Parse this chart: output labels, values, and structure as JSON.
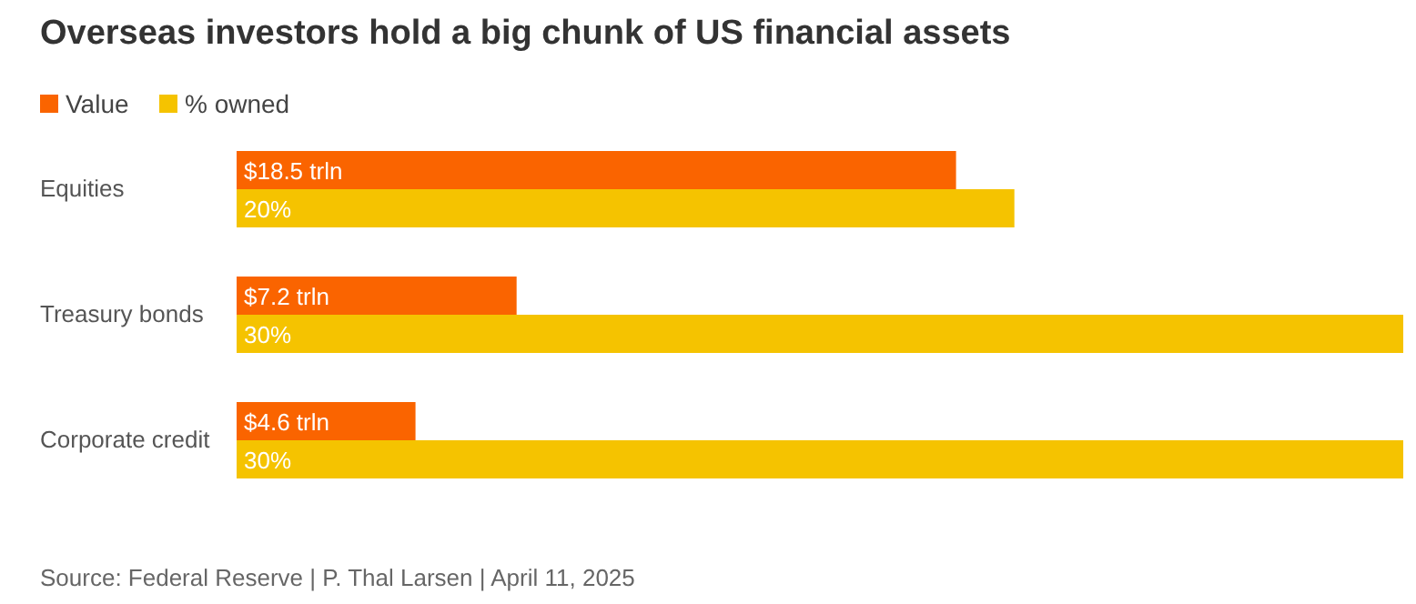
{
  "chart_data": {
    "type": "bar",
    "orientation": "horizontal",
    "title": "Overseas investors hold a big chunk of US financial assets",
    "categories": [
      "Equities",
      "Treasury bonds",
      "Corporate credit"
    ],
    "xlim": [
      0,
      30
    ],
    "legend": "top left",
    "series": [
      {
        "name": "Value",
        "color": "#fa6400",
        "values": [
          18.5,
          7.2,
          4.6
        ],
        "value_labels": [
          "$18.5 trln",
          "$7.2 trln",
          "$4.6 trln"
        ]
      },
      {
        "name": "% owned",
        "color": "#f5c300",
        "values": [
          20,
          30,
          30
        ],
        "value_labels": [
          "20%",
          "30%",
          "30%"
        ]
      }
    ],
    "annotations": [
      "Source: Federal Reserve | P. Thal Larsen | April 11, 2025"
    ]
  }
}
